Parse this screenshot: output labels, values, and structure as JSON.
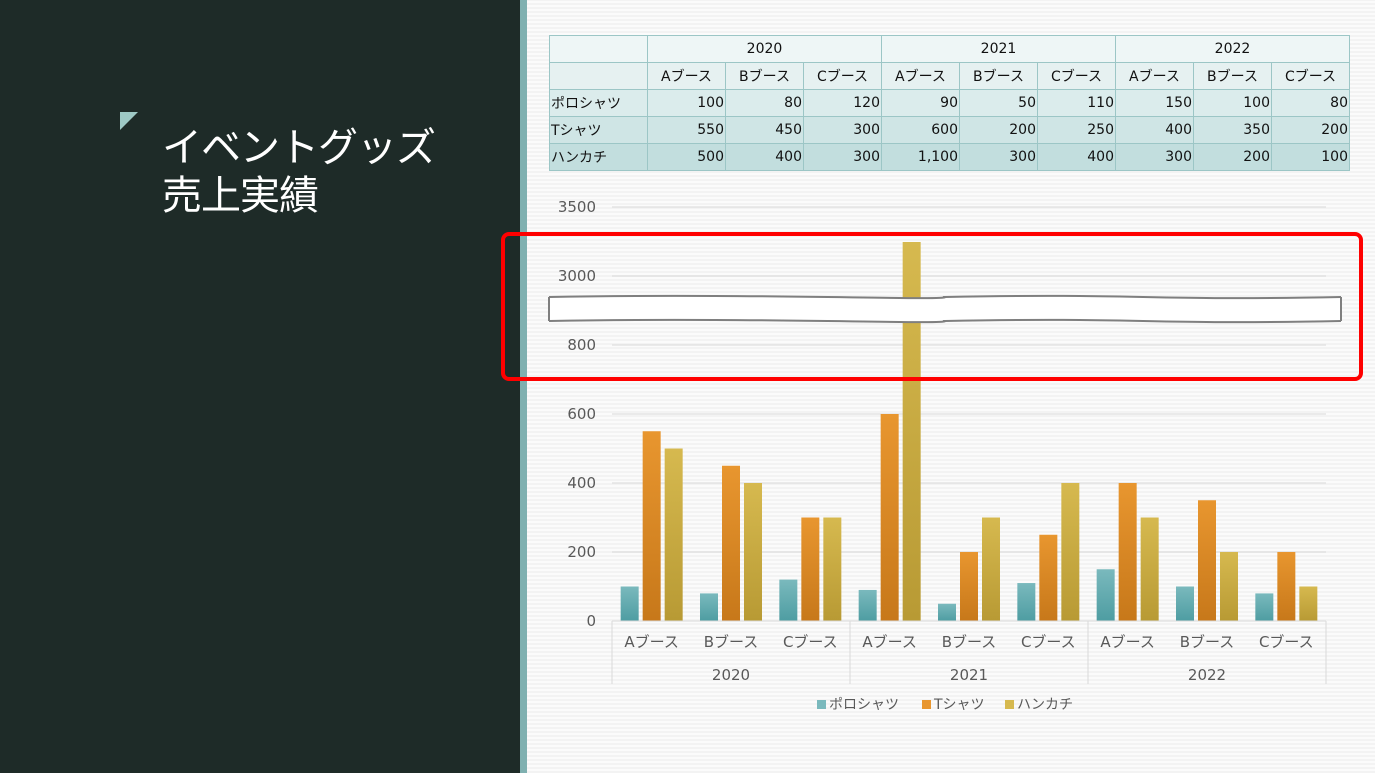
{
  "slide": {
    "title_line1": "イベントグッズ",
    "title_line2": "売上実績"
  },
  "table": {
    "years": [
      "2020",
      "2021",
      "2022"
    ],
    "booths": [
      "Aブース",
      "Bブース",
      "Cブース"
    ],
    "rows": [
      {
        "label": "ポロシャツ",
        "values": [
          "100",
          "80",
          "120",
          "90",
          "50",
          "110",
          "150",
          "100",
          "80"
        ]
      },
      {
        "label": "Tシャツ",
        "values": [
          "550",
          "450",
          "300",
          "600",
          "200",
          "250",
          "400",
          "350",
          "200"
        ]
      },
      {
        "label": "ハンカチ",
        "values": [
          "500",
          "400",
          "300",
          "1,100",
          "300",
          "400",
          "300",
          "200",
          "100"
        ]
      }
    ]
  },
  "colors": {
    "polo": "#7ab9bd",
    "tshirt": "#e8962f",
    "handkerchief": "#d6b94f",
    "highlight": "#ff0000"
  },
  "chart_data": {
    "type": "bar",
    "categories": [
      "Aブース",
      "Bブース",
      "Cブース",
      "Aブース",
      "Bブース",
      "Cブース",
      "Aブース",
      "Bブース",
      "Cブース"
    ],
    "groups": [
      "2020",
      "2021",
      "2022"
    ],
    "series": [
      {
        "name": "ポロシャツ",
        "values": [
          100,
          80,
          120,
          90,
          50,
          110,
          150,
          100,
          80
        ]
      },
      {
        "name": "Tシャツ",
        "values": [
          550,
          450,
          300,
          600,
          200,
          250,
          400,
          350,
          200
        ]
      },
      {
        "name": "ハンカチ",
        "values": [
          500,
          400,
          300,
          1100,
          300,
          400,
          300,
          200,
          100
        ]
      }
    ],
    "ytick_labels": [
      "0",
      "200",
      "400",
      "600",
      "800",
      "3000",
      "3500"
    ],
    "axis_break": "between 800 and 3000",
    "legend": "bottom",
    "grid": true
  }
}
